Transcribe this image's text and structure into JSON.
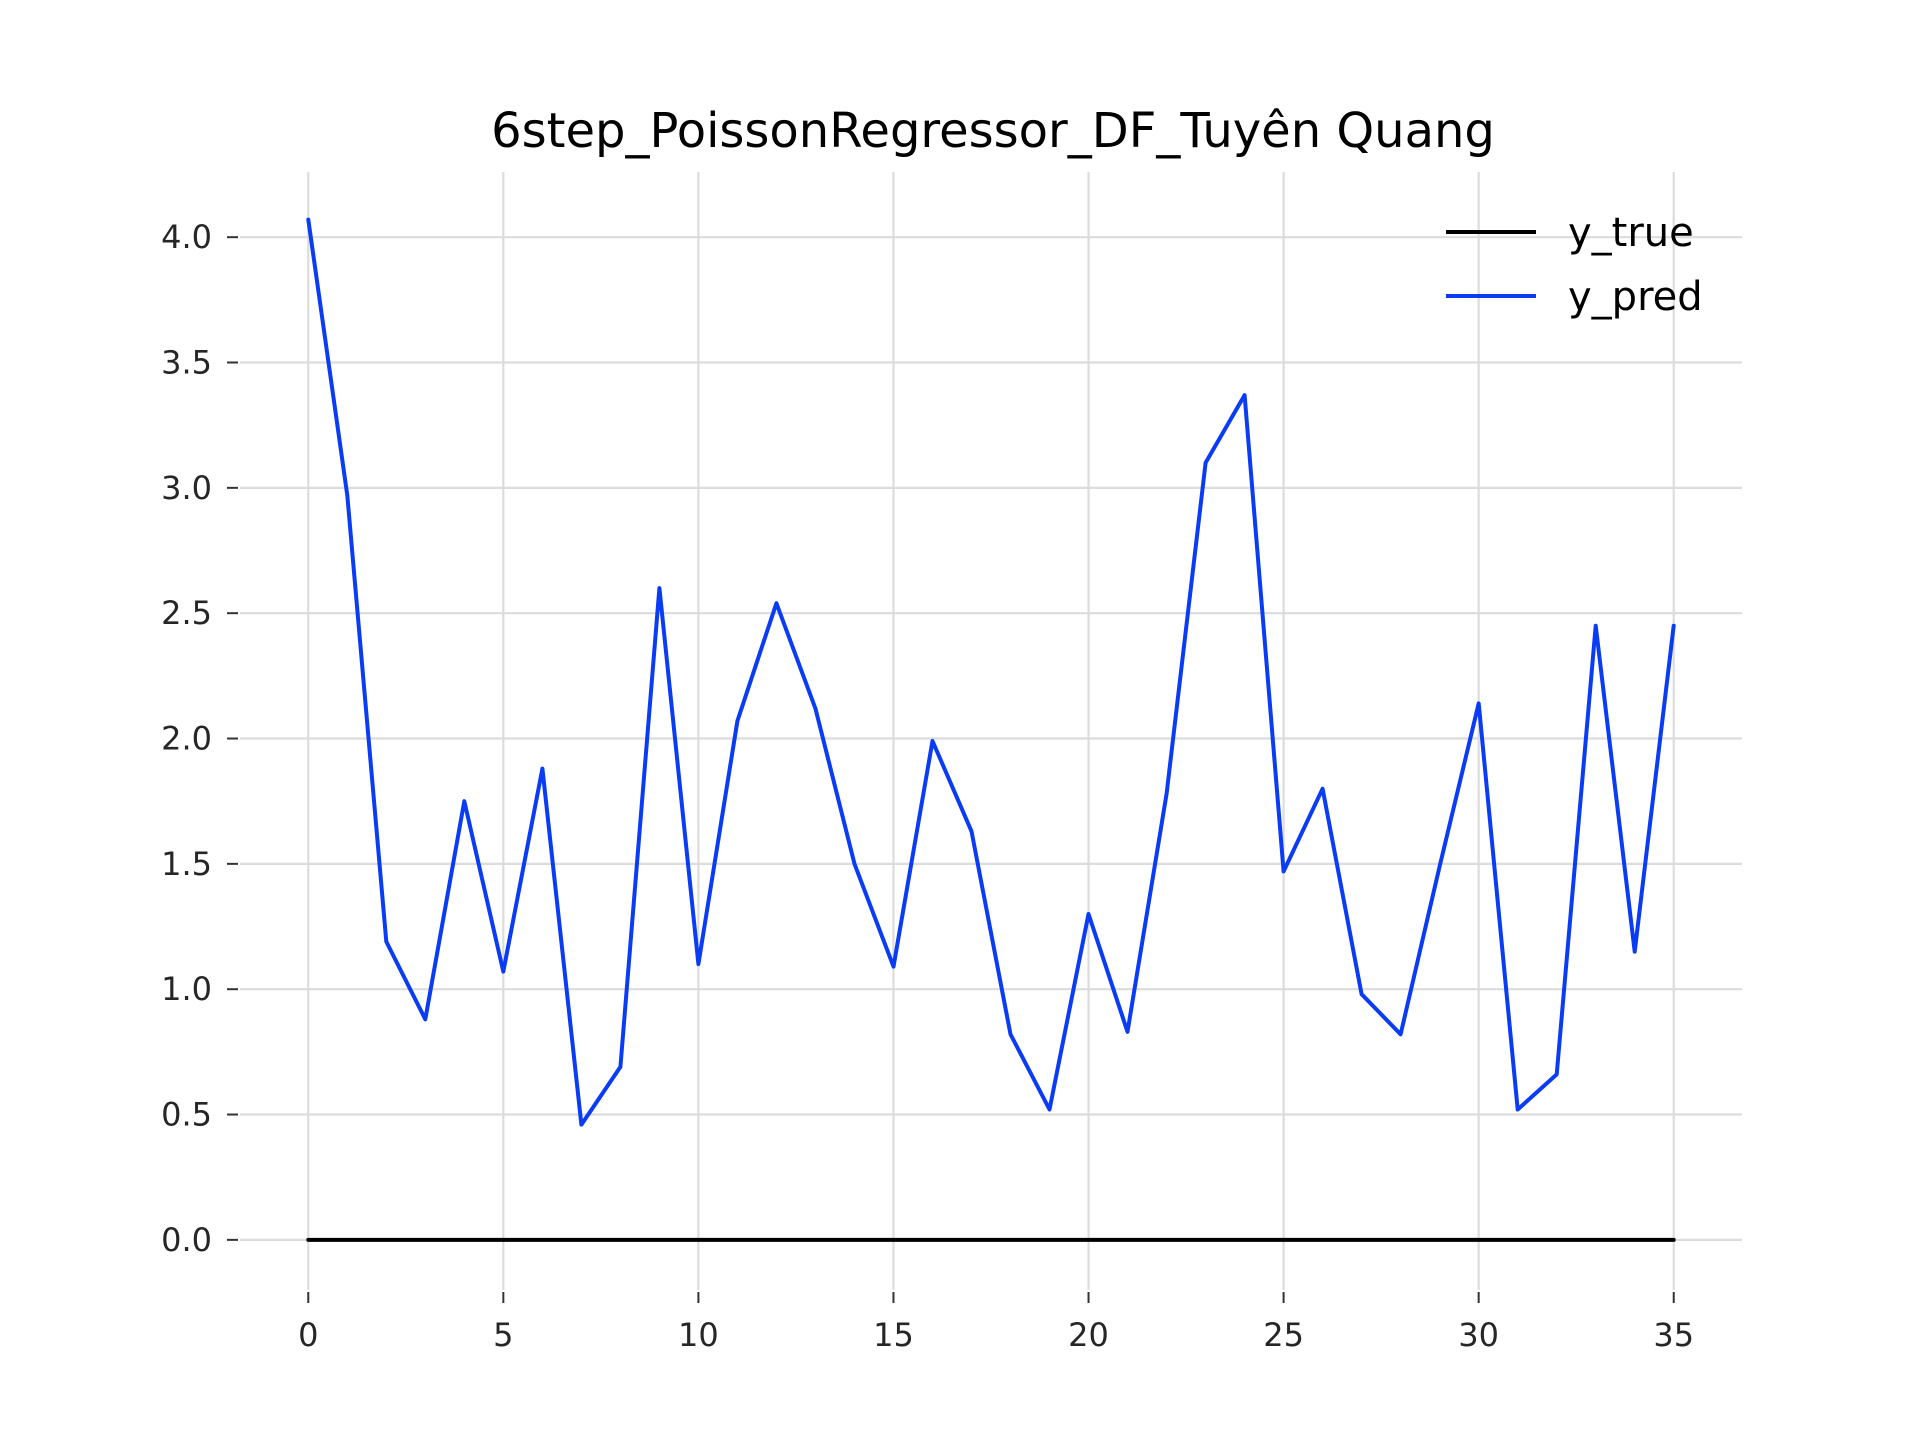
{
  "chart_data": {
    "type": "line",
    "title": "6step_PoissonRegressor_DF_Tuyên Quang",
    "xlabel": "",
    "ylabel": "",
    "xlim": [
      -1.75,
      36.75
    ],
    "ylim": [
      -0.2,
      4.26
    ],
    "x_ticks": [
      0,
      5,
      10,
      15,
      20,
      25,
      30,
      35
    ],
    "x_tick_labels": [
      "0",
      "5",
      "10",
      "15",
      "20",
      "25",
      "30",
      "35"
    ],
    "y_ticks": [
      0.0,
      0.5,
      1.0,
      1.5,
      2.0,
      2.5,
      3.0,
      3.5,
      4.0
    ],
    "y_tick_labels": [
      "0.0",
      "0.5",
      "1.0",
      "1.5",
      "2.0",
      "2.5",
      "3.0",
      "3.5",
      "4.0"
    ],
    "grid": true,
    "legend_position": "top-right",
    "x": [
      0,
      1,
      2,
      3,
      4,
      5,
      6,
      7,
      8,
      9,
      10,
      11,
      12,
      13,
      14,
      15,
      16,
      17,
      18,
      19,
      20,
      21,
      22,
      23,
      24,
      25,
      26,
      27,
      28,
      29,
      30,
      31,
      32,
      33,
      34,
      35
    ],
    "series": [
      {
        "name": "y_true",
        "color": "#000000",
        "values": [
          0,
          0,
          0,
          0,
          0,
          0,
          0,
          0,
          0,
          0,
          0,
          0,
          0,
          0,
          0,
          0,
          0,
          0,
          0,
          0,
          0,
          0,
          0,
          0,
          0,
          0,
          0,
          0,
          0,
          0,
          0,
          0,
          0,
          0,
          0,
          0
        ]
      },
      {
        "name": "y_pred",
        "color": "#0a3cf5",
        "values": [
          4.07,
          2.97,
          1.19,
          0.88,
          1.75,
          1.07,
          1.88,
          0.46,
          0.69,
          2.6,
          1.1,
          2.07,
          2.54,
          2.12,
          1.5,
          1.09,
          1.99,
          1.63,
          0.82,
          0.52,
          1.3,
          0.83,
          1.78,
          3.1,
          3.37,
          1.47,
          1.8,
          0.98,
          0.82,
          1.49,
          2.14,
          0.52,
          0.66,
          2.45,
          1.15,
          2.45
        ]
      }
    ]
  }
}
